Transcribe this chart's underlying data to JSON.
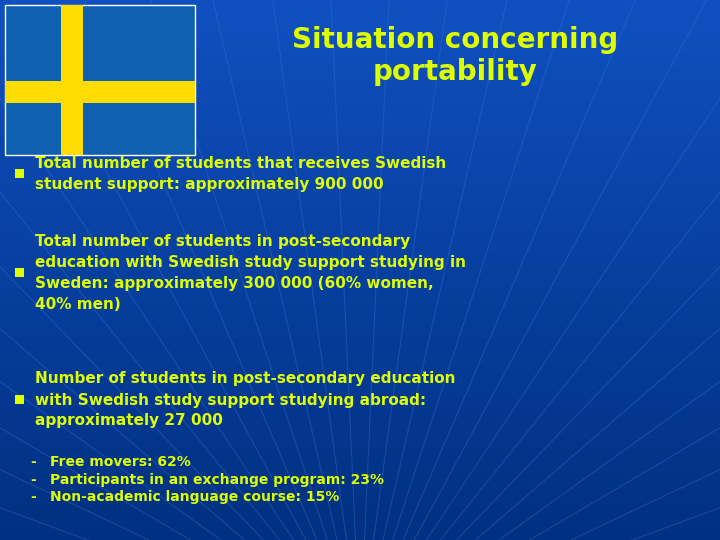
{
  "title_line1": "Situation concerning",
  "title_line2": "portability",
  "title_color": "#DDFF00",
  "bg_color": "#1050C0",
  "text_color": "#DDFF00",
  "bullet_color": "#DDFF00",
  "bullets": [
    "Total number of students that receives Swedish\nstudent support: approximately 900 000",
    "Total number of students in post-secondary\neducation with Swedish study support studying in\nSweden: approximately 300 000 (60% women,\n40% men)",
    "Number of students in post-secondary education\nwith Swedish study support studying abroad:\napproximately 27 000"
  ],
  "sub_bullets": [
    "Free movers: 62%",
    "Participants in an exchange program: 23%",
    "Non-academic language course: 15%"
  ],
  "flag_blue": "#1060B0",
  "flag_yellow": "#FFDD00",
  "font_size_title": 20,
  "font_size_bullet": 11,
  "font_size_sub": 10
}
